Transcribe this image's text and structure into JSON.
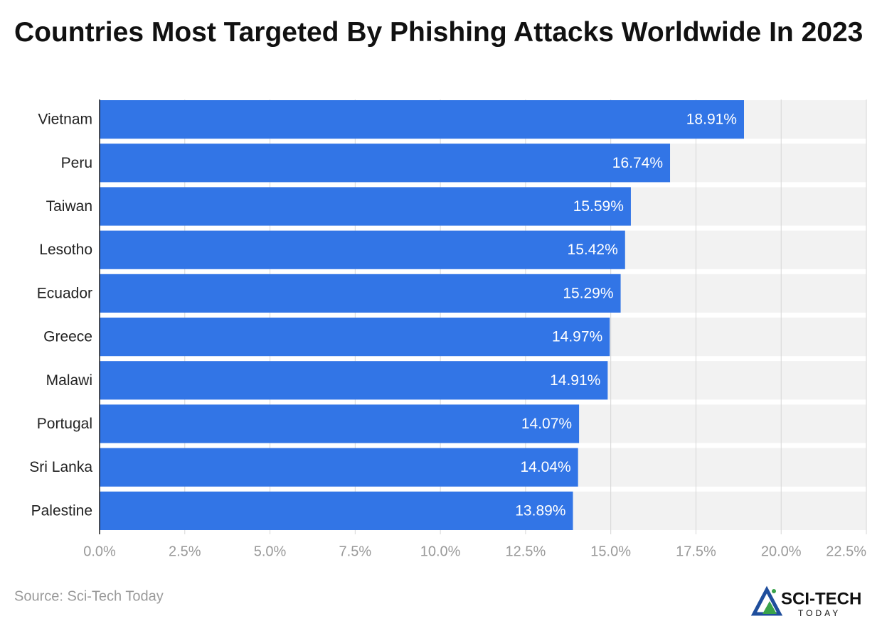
{
  "chart_data": {
    "type": "hbar",
    "title": "Countries Most Targeted By Phishing Attacks Worldwide In 2023",
    "categories": [
      "Vietnam",
      "Peru",
      "Taiwan",
      "Lesotho",
      "Ecuador",
      "Greece",
      "Malawi",
      "Portugal",
      "Sri Lanka",
      "Palestine"
    ],
    "values": [
      18.91,
      16.74,
      15.59,
      15.42,
      15.29,
      14.97,
      14.91,
      14.07,
      14.04,
      13.89
    ],
    "value_labels": [
      "18.91%",
      "16.74%",
      "15.59%",
      "15.42%",
      "15.29%",
      "14.97%",
      "14.91%",
      "14.07%",
      "14.04%",
      "13.89%"
    ],
    "color": "#3275e6",
    "xlim": [
      0,
      22.5
    ],
    "xticks": [
      {
        "value": 0,
        "label": "0.0%"
      },
      {
        "value": 2.5,
        "label": "2.5%"
      },
      {
        "value": 5,
        "label": "5.0%"
      },
      {
        "value": 7.5,
        "label": "7.5%"
      },
      {
        "value": 10,
        "label": "10.0%"
      },
      {
        "value": 12.5,
        "label": "12.5%"
      },
      {
        "value": 15,
        "label": "15.0%"
      },
      {
        "value": 17.5,
        "label": "17.5%"
      },
      {
        "value": 20,
        "label": "20.0%"
      },
      {
        "value": 22.5,
        "label": "22.5%"
      }
    ],
    "grid": true,
    "source": "Source: Sci-Tech Today",
    "logo": {
      "name": "SCI-TECH",
      "subname": "TODAY"
    }
  }
}
